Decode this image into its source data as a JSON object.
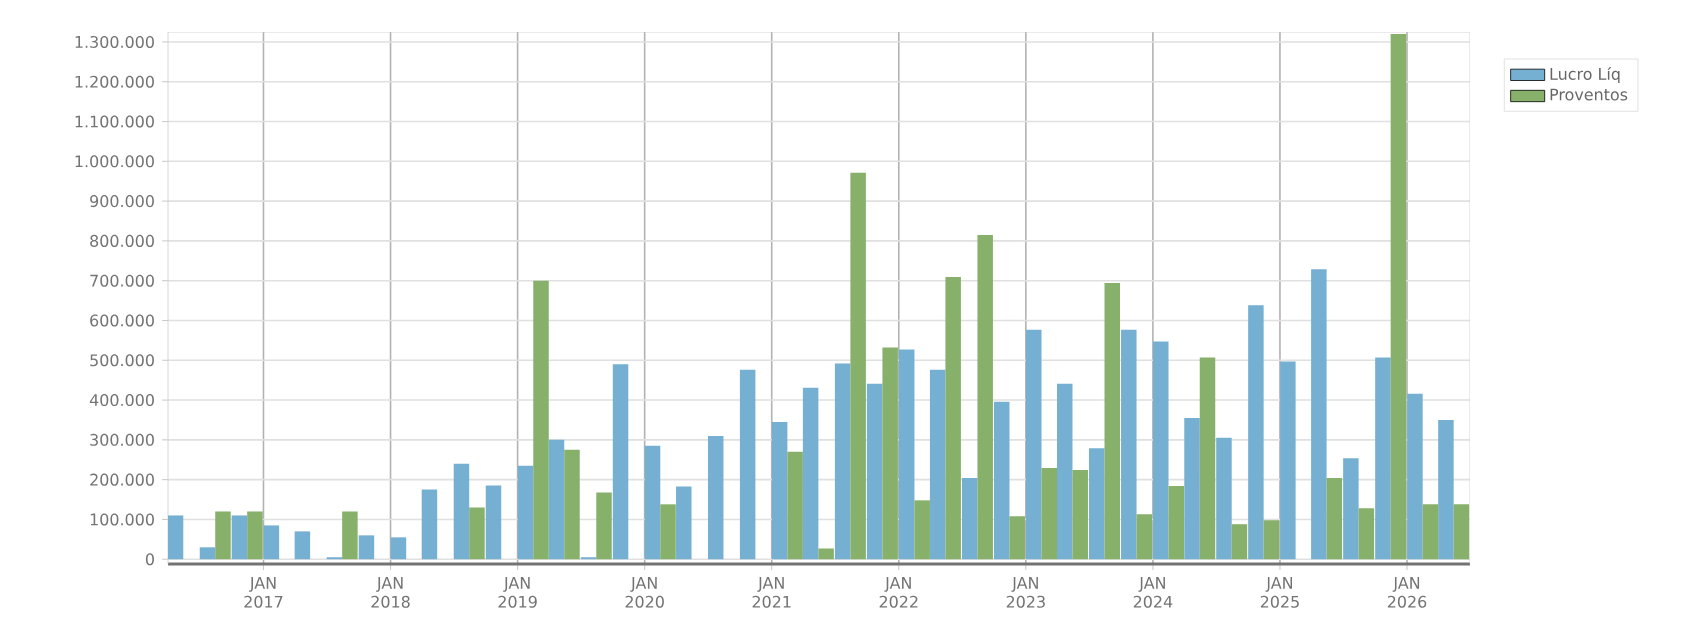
{
  "chart_data": {
    "type": "bar",
    "x": [
      "2016-05-15",
      "2016-08-15",
      "2016-11-15",
      "2017-02-15",
      "2017-05-15",
      "2017-08-15",
      "2017-11-15",
      "2018-02-15",
      "2018-05-15",
      "2018-08-15",
      "2018-11-15",
      "2019-02-15",
      "2019-05-15",
      "2019-08-15",
      "2019-11-15",
      "2020-02-15",
      "2020-05-15",
      "2020-08-15",
      "2020-11-15",
      "2021-02-15",
      "2021-05-15",
      "2021-08-15",
      "2021-11-15",
      "2022-02-15",
      "2022-05-15",
      "2022-08-15",
      "2022-11-15",
      "2023-02-15",
      "2023-05-15",
      "2023-08-15",
      "2023-11-15",
      "2024-02-15",
      "2024-05-15",
      "2024-08-15",
      "2024-11-15",
      "2025-02-15",
      "2025-05-15",
      "2025-08-15",
      "2025-11-15",
      "2026-02-15",
      "2026-05-15"
    ],
    "series": [
      {
        "name": "Lucro Líq",
        "color": "#75afd2",
        "values": [
          110000,
          30000,
          110000,
          85000,
          70000,
          5000,
          60000,
          55000,
          175000,
          240000,
          185000,
          235000,
          300000,
          5000,
          490000,
          285000,
          183000,
          310000,
          476000,
          345000,
          431000,
          492000,
          441000,
          527000,
          476000,
          204000,
          396000,
          577000,
          441000,
          279000,
          577000,
          547000,
          355000,
          305000,
          638000,
          497000,
          729000,
          254000,
          507000,
          416000,
          350000
        ]
      },
      {
        "name": "Proventos",
        "color": "#87b06a",
        "values": [
          0,
          120000,
          120000,
          0,
          0,
          120000,
          0,
          0,
          0,
          130000,
          0,
          700000,
          275000,
          168000,
          0,
          138000,
          0,
          0,
          0,
          270000,
          27000,
          971000,
          532000,
          148000,
          709000,
          815000,
          108000,
          229000,
          224000,
          694000,
          113000,
          184000,
          507000,
          88000,
          98000,
          0,
          204000,
          128000,
          1320000,
          138000,
          138000
        ]
      }
    ],
    "xlim": [
      "2016-04",
      "2026-07"
    ],
    "xticks": [
      {
        "value": "2017-01",
        "label": "JAN 2017"
      },
      {
        "value": "2018-01",
        "label": "JAN 2018"
      },
      {
        "value": "2019-01",
        "label": "JAN 2019"
      },
      {
        "value": "2020-01",
        "label": "JAN 2020"
      },
      {
        "value": "2021-01",
        "label": "JAN 2021"
      },
      {
        "value": "2022-01",
        "label": "JAN 2022"
      },
      {
        "value": "2023-01",
        "label": "JAN 2023"
      },
      {
        "value": "2024-01",
        "label": "JAN 2024"
      },
      {
        "value": "2025-01",
        "label": "JAN 2025"
      },
      {
        "value": "2026-01",
        "label": "JAN 2026"
      }
    ],
    "ylim": [
      -12000,
      1325000
    ],
    "yticks": [
      0,
      {
        "value": 100000,
        "label": "100.000"
      },
      {
        "value": 200000,
        "label": "200.000"
      },
      {
        "value": 300000,
        "label": "300.000"
      },
      {
        "value": 400000,
        "label": "400.000"
      },
      {
        "value": 500000,
        "label": "500.000"
      },
      {
        "value": 600000,
        "label": "600.000"
      },
      {
        "value": 700000,
        "label": "700.000"
      },
      {
        "value": 800000,
        "label": "800.000"
      },
      {
        "value": 900000,
        "label": "900.000"
      },
      {
        "value": 1000000,
        "label": "1.000.000"
      },
      {
        "value": 1100000,
        "label": "1.100.000"
      },
      {
        "value": 1200000,
        "label": "1.200.000"
      },
      {
        "value": 1300000,
        "label": "1.300.000"
      }
    ],
    "grid": true,
    "legend": "right"
  }
}
